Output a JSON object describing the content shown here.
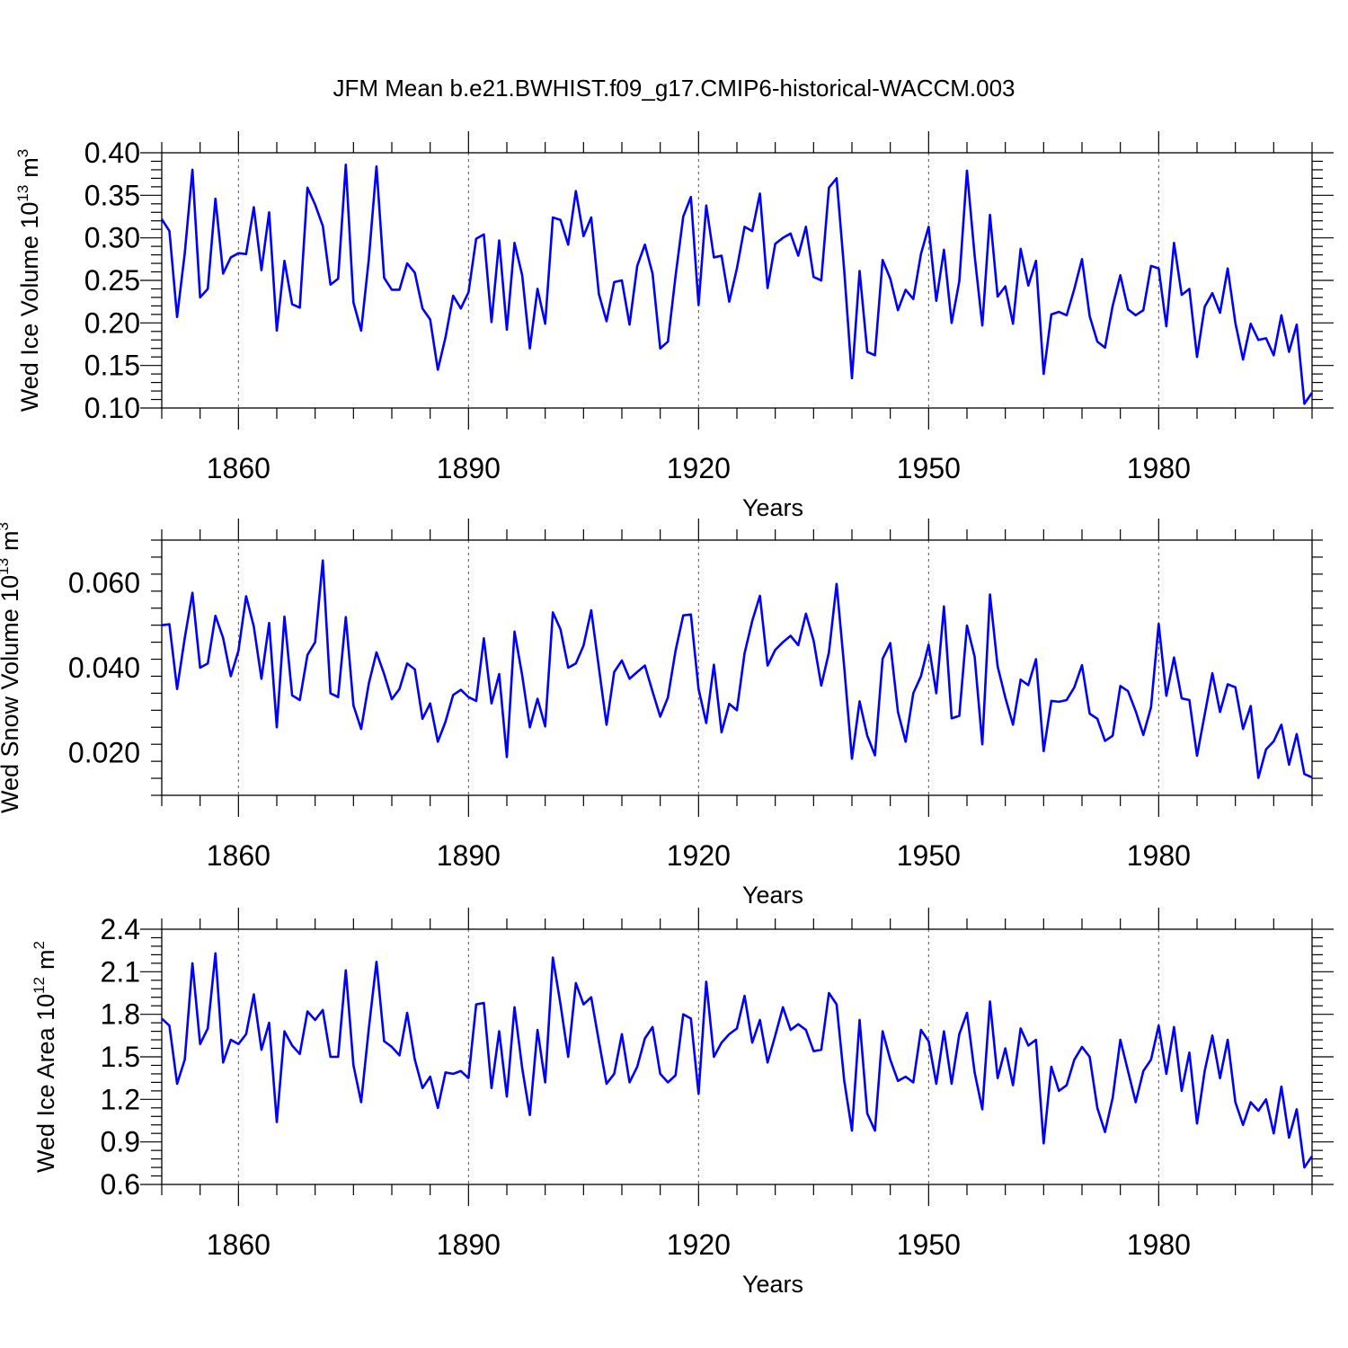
{
  "figure": {
    "title": "JFM Mean b.e21.BWHIST.f09_g17.CMIP6-historical-WACCM.003"
  },
  "chart_data": [
    {
      "type": "line",
      "ylabel_main": "Wed Ice Volume 10",
      "ylabel_exp": "13",
      "ylabel_unit": "m",
      "ylabel_unit_exp": "3",
      "xlabel": "Years",
      "xlim": [
        1850,
        2000
      ],
      "ylim": [
        0.1,
        0.4
      ],
      "xticks": [
        1860,
        1890,
        1920,
        1950,
        1980
      ],
      "xtick_labels": [
        "1860",
        "1890",
        "1920",
        "1950",
        "1980"
      ],
      "yticks": [
        0.1,
        0.15,
        0.2,
        0.25,
        0.3,
        0.35,
        0.4
      ],
      "ytick_labels": [
        "0.10",
        "0.15",
        "0.20",
        "0.25",
        "0.30",
        "0.35",
        "0.40"
      ],
      "grid": "dashed vertical at major x ticks",
      "series": [
        {
          "name": "Wed Ice Volume",
          "color": "#0000ff",
          "x_start": 1850,
          "x_step": 1,
          "values": [
            0.322,
            0.308,
            0.207,
            0.282,
            0.38,
            0.23,
            0.24,
            0.346,
            0.258,
            0.277,
            0.282,
            0.281,
            0.336,
            0.262,
            0.33,
            0.191,
            0.273,
            0.222,
            0.218,
            0.359,
            0.339,
            0.314,
            0.245,
            0.252,
            0.386,
            0.224,
            0.191,
            0.275,
            0.384,
            0.253,
            0.239,
            0.239,
            0.27,
            0.259,
            0.217,
            0.204,
            0.145,
            0.183,
            0.232,
            0.217,
            0.236,
            0.299,
            0.304,
            0.201,
            0.297,
            0.192,
            0.294,
            0.256,
            0.17,
            0.24,
            0.199,
            0.324,
            0.321,
            0.292,
            0.355,
            0.302,
            0.324,
            0.234,
            0.202,
            0.248,
            0.25,
            0.198,
            0.267,
            0.292,
            0.258,
            0.17,
            0.178,
            0.255,
            0.325,
            0.348,
            0.221,
            0.338,
            0.277,
            0.279,
            0.225,
            0.264,
            0.313,
            0.308,
            0.352,
            0.241,
            0.293,
            0.3,
            0.305,
            0.279,
            0.313,
            0.254,
            0.25,
            0.359,
            0.37,
            0.261,
            0.135,
            0.261,
            0.166,
            0.162,
            0.274,
            0.252,
            0.215,
            0.239,
            0.228,
            0.281,
            0.313,
            0.226,
            0.286,
            0.2,
            0.249,
            0.379,
            0.279,
            0.197,
            0.327,
            0.231,
            0.243,
            0.199,
            0.287,
            0.244,
            0.273,
            0.14,
            0.21,
            0.213,
            0.209,
            0.24,
            0.275,
            0.208,
            0.178,
            0.171,
            0.22,
            0.256,
            0.216,
            0.209,
            0.215,
            0.267,
            0.264,
            0.196,
            0.294,
            0.233,
            0.24,
            0.16,
            0.219,
            0.235,
            0.212,
            0.264,
            0.2,
            0.157,
            0.199,
            0.18,
            0.182,
            0.162,
            0.209,
            0.166,
            0.198,
            0.105,
            0.118
          ]
        }
      ]
    },
    {
      "type": "line",
      "ylabel_main": "Wed Snow Volume 10",
      "ylabel_exp": "13",
      "ylabel_unit": "m",
      "ylabel_unit_exp": "3",
      "xlabel": "Years",
      "xlim": [
        1850,
        2000
      ],
      "ylim": [
        0.01,
        0.07
      ],
      "xticks": [
        1860,
        1890,
        1920,
        1950,
        1980
      ],
      "xtick_labels": [
        "1860",
        "1890",
        "1920",
        "1950",
        "1980"
      ],
      "yticks": [
        0.02,
        0.04,
        0.06
      ],
      "ytick_labels": [
        "0.020",
        "0.040",
        "0.060"
      ],
      "grid": "dashed vertical at major x ticks",
      "series": [
        {
          "name": "Wed Snow Volume",
          "color": "#0000ff",
          "x_start": 1850,
          "x_step": 1,
          "values": [
            0.05,
            0.0502,
            0.035,
            0.047,
            0.0576,
            0.04,
            0.041,
            0.0522,
            0.047,
            0.038,
            0.044,
            0.0568,
            0.0497,
            0.0374,
            0.0505,
            0.026,
            0.052,
            0.0335,
            0.0324,
            0.043,
            0.046,
            0.0652,
            0.034,
            0.0331,
            0.0519,
            0.0311,
            0.0256,
            0.0363,
            0.0436,
            0.0385,
            0.0326,
            0.035,
            0.041,
            0.0396,
            0.028,
            0.0316,
            0.0226,
            0.0273,
            0.0336,
            0.0348,
            0.0331,
            0.0322,
            0.0469,
            0.0316,
            0.0385,
            0.019,
            0.0485,
            0.0382,
            0.026,
            0.0327,
            0.0262,
            0.053,
            0.049,
            0.04,
            0.041,
            0.0452,
            0.0535,
            0.04,
            0.0266,
            0.039,
            0.0417,
            0.0374,
            0.039,
            0.0405,
            0.0344,
            0.0285,
            0.033,
            0.044,
            0.0523,
            0.0525,
            0.035,
            0.027,
            0.0407,
            0.0248,
            0.0315,
            0.03,
            0.0434,
            0.051,
            0.0569,
            0.0405,
            0.0442,
            0.046,
            0.0475,
            0.0453,
            0.0527,
            0.0464,
            0.0358,
            0.0436,
            0.0597,
            0.04,
            0.0186,
            0.0321,
            0.024,
            0.0194,
            0.0421,
            0.0458,
            0.0296,
            0.0226,
            0.034,
            0.038,
            0.0454,
            0.034,
            0.0544,
            0.0281,
            0.0287,
            0.0499,
            0.0426,
            0.022,
            0.0572,
            0.0403,
            0.033,
            0.0266,
            0.0372,
            0.0359,
            0.042,
            0.0204,
            0.0322,
            0.032,
            0.0324,
            0.0354,
            0.0406,
            0.0292,
            0.028,
            0.0228,
            0.024,
            0.0357,
            0.0345,
            0.0298,
            0.0242,
            0.0307,
            0.0503,
            0.0334,
            0.0424,
            0.0328,
            0.0324,
            0.0193,
            0.029,
            0.0387,
            0.0296,
            0.0361,
            0.0354,
            0.0256,
            0.031,
            0.0141,
            0.0208,
            0.0227,
            0.0266,
            0.0172,
            0.0244,
            0.015,
            0.0142
          ]
        }
      ]
    },
    {
      "type": "line",
      "ylabel_main": "Wed Ice Area 10",
      "ylabel_exp": "12",
      "ylabel_unit": "m",
      "ylabel_unit_exp": "2",
      "xlabel": "Years",
      "xlim": [
        1850,
        2000
      ],
      "ylim": [
        0.6,
        2.4
      ],
      "xticks": [
        1860,
        1890,
        1920,
        1950,
        1980
      ],
      "xtick_labels": [
        "1860",
        "1890",
        "1920",
        "1950",
        "1980"
      ],
      "yticks": [
        0.6,
        0.9,
        1.2,
        1.5,
        1.8,
        2.1,
        2.4
      ],
      "ytick_labels": [
        "0.6",
        "0.9",
        "1.2",
        "1.5",
        "1.8",
        "2.1",
        "2.4"
      ],
      "grid": "dashed vertical at major x ticks",
      "series": [
        {
          "name": "Wed Ice Area",
          "color": "#0000ff",
          "x_start": 1850,
          "x_step": 1,
          "values": [
            1.77,
            1.72,
            1.31,
            1.48,
            2.16,
            1.59,
            1.7,
            2.23,
            1.46,
            1.62,
            1.59,
            1.66,
            1.94,
            1.55,
            1.74,
            1.04,
            1.68,
            1.58,
            1.52,
            1.82,
            1.76,
            1.83,
            1.5,
            1.5,
            2.11,
            1.44,
            1.18,
            1.7,
            2.17,
            1.61,
            1.57,
            1.51,
            1.81,
            1.48,
            1.28,
            1.36,
            1.14,
            1.39,
            1.38,
            1.4,
            1.35,
            1.87,
            1.88,
            1.28,
            1.68,
            1.22,
            1.85,
            1.42,
            1.09,
            1.69,
            1.32,
            2.2,
            1.87,
            1.5,
            2.02,
            1.87,
            1.92,
            1.61,
            1.31,
            1.38,
            1.66,
            1.32,
            1.43,
            1.63,
            1.71,
            1.38,
            1.32,
            1.37,
            1.8,
            1.77,
            1.24,
            2.03,
            1.5,
            1.6,
            1.66,
            1.7,
            1.93,
            1.6,
            1.76,
            1.46,
            1.65,
            1.85,
            1.69,
            1.73,
            1.69,
            1.54,
            1.55,
            1.95,
            1.87,
            1.33,
            0.98,
            1.76,
            1.1,
            0.98,
            1.68,
            1.48,
            1.33,
            1.36,
            1.32,
            1.69,
            1.61,
            1.31,
            1.68,
            1.31,
            1.66,
            1.81,
            1.39,
            1.13,
            1.89,
            1.35,
            1.56,
            1.3,
            1.7,
            1.58,
            1.62,
            0.89,
            1.43,
            1.26,
            1.3,
            1.48,
            1.57,
            1.5,
            1.14,
            0.97,
            1.21,
            1.62,
            1.4,
            1.18,
            1.4,
            1.48,
            1.72,
            1.38,
            1.71,
            1.26,
            1.53,
            1.03,
            1.4,
            1.65,
            1.35,
            1.62,
            1.18,
            1.02,
            1.18,
            1.12,
            1.2,
            0.96,
            1.29,
            0.93,
            1.13,
            0.72,
            0.8
          ]
        }
      ]
    }
  ]
}
